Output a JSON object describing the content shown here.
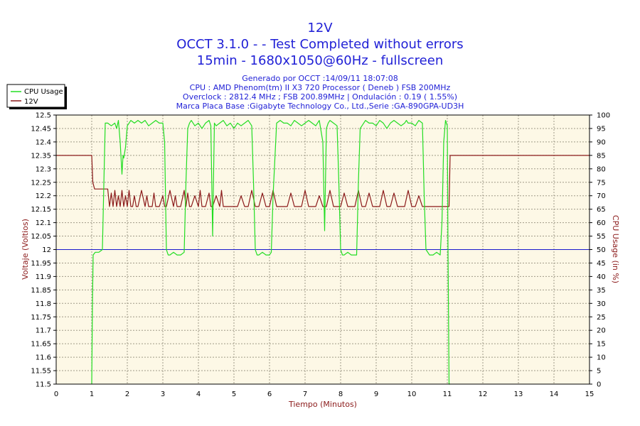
{
  "titles": {
    "line1": "12V",
    "line2": "OCCT 3.1.0 -  - Test Completed without errors",
    "line3": "15min - 1680x1050@60Hz - fullscreen"
  },
  "info": {
    "line1": "Generado por OCCT :14/09/11 18:07:08",
    "line2": "CPU : AMD Phenom(tm) II X3 720 Processor ( Deneb ) FSB 200MHz",
    "line3": "Overclock : 2812.4 MHz ; FSB 200.89MHz | Ondulación : 0.19 ( 1.55%)",
    "line4": "Marca Placa Base :Gigabyte Technology Co., Ltd.,Serie :GA-890GPA-UD3H"
  },
  "legend": {
    "cpu": "CPU Usage",
    "v12": "12V"
  },
  "colors": {
    "cpu": "#22dd22",
    "v12": "#8b1a1a",
    "ref": "#1a1acc",
    "plot_bg": "#fdf8e6",
    "grid": "#a09a88",
    "title": "#1f1fd6",
    "axis_label": "#8b1a1a"
  },
  "chart_data": {
    "type": "line",
    "xlabel": "Tiempo (Minutos)",
    "ylabel_left": "Voltaje (Voltios)",
    "ylabel_right": "CPU Usage (in %)",
    "xlim": [
      0,
      15
    ],
    "ylim_left": [
      11.5,
      12.5
    ],
    "ylim_right": [
      0,
      100
    ],
    "grid": true,
    "legend_position": "top-left",
    "xticks": [
      "0",
      "1",
      "2",
      "3",
      "4",
      "5",
      "6",
      "7",
      "8",
      "9",
      "10",
      "11",
      "12",
      "13",
      "14",
      "15"
    ],
    "yticks_left": [
      "11.5",
      "11.55",
      "11.6",
      "11.65",
      "11.7",
      "11.75",
      "11.8",
      "11.85",
      "11.9",
      "11.95",
      "12",
      "12.05",
      "12.1",
      "12.15",
      "12.2",
      "12.25",
      "12.3",
      "12.35",
      "12.4",
      "12.45",
      "12.5"
    ],
    "yticks_right": [
      "0",
      "5",
      "10",
      "15",
      "20",
      "25",
      "30",
      "35",
      "40",
      "45",
      "50",
      "55",
      "60",
      "65",
      "70",
      "75",
      "80",
      "85",
      "90",
      "95",
      "100"
    ],
    "reference_line": 12.0,
    "series": [
      {
        "name": "12V",
        "axis": "left",
        "x": [
          0,
          1.0,
          1.03,
          1.08,
          1.45,
          1.5,
          1.55,
          1.6,
          1.65,
          1.7,
          1.75,
          1.8,
          1.85,
          1.9,
          1.95,
          2.0,
          2.05,
          2.1,
          2.15,
          2.2,
          2.25,
          2.3,
          2.4,
          2.5,
          2.55,
          2.6,
          2.7,
          2.75,
          2.8,
          2.9,
          3.0,
          3.05,
          3.1,
          3.2,
          3.3,
          3.35,
          3.4,
          3.5,
          3.6,
          3.65,
          3.7,
          3.75,
          3.8,
          3.9,
          4.0,
          4.05,
          4.1,
          4.2,
          4.3,
          4.35,
          4.4,
          4.5,
          4.6,
          4.65,
          4.7,
          4.8,
          4.9,
          5.0,
          5.1,
          5.2,
          5.3,
          5.4,
          5.5,
          5.6,
          5.7,
          5.8,
          5.9,
          6.0,
          6.1,
          6.2,
          6.3,
          6.4,
          6.5,
          6.6,
          6.7,
          6.8,
          6.9,
          7.0,
          7.1,
          7.2,
          7.3,
          7.4,
          7.5,
          7.6,
          7.7,
          7.8,
          7.9,
          8.0,
          8.1,
          8.2,
          8.3,
          8.4,
          8.5,
          8.6,
          8.7,
          8.8,
          8.9,
          9.0,
          9.1,
          9.2,
          9.3,
          9.4,
          9.5,
          9.6,
          9.7,
          9.8,
          9.9,
          10.0,
          10.1,
          10.2,
          10.3,
          10.4,
          10.5,
          10.6,
          10.7,
          10.8,
          10.9,
          11.0,
          11.05,
          11.08,
          11.1,
          15
        ],
        "values": [
          12.35,
          12.35,
          12.25,
          12.225,
          12.225,
          12.16,
          12.21,
          12.16,
          12.22,
          12.16,
          12.2,
          12.16,
          12.22,
          12.16,
          12.2,
          12.16,
          12.22,
          12.16,
          12.16,
          12.2,
          12.16,
          12.16,
          12.22,
          12.16,
          12.2,
          12.16,
          12.16,
          12.21,
          12.16,
          12.16,
          12.2,
          12.16,
          12.16,
          12.22,
          12.16,
          12.2,
          12.16,
          12.16,
          12.22,
          12.16,
          12.21,
          12.16,
          12.16,
          12.2,
          12.16,
          12.22,
          12.16,
          12.16,
          12.21,
          12.16,
          12.16,
          12.2,
          12.16,
          12.22,
          12.16,
          12.16,
          12.16,
          12.16,
          12.16,
          12.2,
          12.16,
          12.16,
          12.22,
          12.16,
          12.16,
          12.21,
          12.16,
          12.16,
          12.22,
          12.16,
          12.16,
          12.16,
          12.16,
          12.21,
          12.16,
          12.16,
          12.16,
          12.22,
          12.16,
          12.16,
          12.16,
          12.2,
          12.16,
          12.16,
          12.22,
          12.16,
          12.16,
          12.16,
          12.21,
          12.16,
          12.16,
          12.16,
          12.22,
          12.16,
          12.16,
          12.21,
          12.16,
          12.16,
          12.16,
          12.22,
          12.16,
          12.16,
          12.21,
          12.16,
          12.16,
          12.16,
          12.22,
          12.16,
          12.16,
          12.2,
          12.16,
          12.16,
          12.16,
          12.16,
          12.16,
          12.16,
          12.16,
          12.16,
          12.16,
          12.35,
          12.35,
          12.35
        ]
      },
      {
        "name": "CPU Usage",
        "axis": "right",
        "x": [
          1.0,
          1.02,
          1.04,
          1.1,
          1.2,
          1.3,
          1.35,
          1.38,
          1.45,
          1.55,
          1.65,
          1.7,
          1.75,
          1.8,
          1.85,
          1.88,
          1.9,
          1.95,
          2.0,
          2.05,
          2.1,
          2.2,
          2.3,
          2.4,
          2.5,
          2.6,
          2.7,
          2.8,
          2.9,
          3.0,
          3.05,
          3.1,
          3.15,
          3.2,
          3.3,
          3.4,
          3.5,
          3.6,
          3.65,
          3.7,
          3.75,
          3.8,
          3.9,
          4.0,
          4.1,
          4.2,
          4.3,
          4.35,
          4.4,
          4.45,
          4.5,
          4.6,
          4.7,
          4.8,
          4.9,
          5.0,
          5.1,
          5.2,
          5.3,
          5.4,
          5.5,
          5.55,
          5.6,
          5.65,
          5.7,
          5.8,
          5.9,
          6.0,
          6.05,
          6.1,
          6.2,
          6.3,
          6.4,
          6.5,
          6.6,
          6.7,
          6.8,
          6.9,
          7.0,
          7.1,
          7.2,
          7.3,
          7.4,
          7.5,
          7.55,
          7.6,
          7.65,
          7.7,
          7.8,
          7.9,
          7.95,
          8.0,
          8.05,
          8.1,
          8.2,
          8.3,
          8.4,
          8.45,
          8.5,
          8.55,
          8.6,
          8.7,
          8.8,
          8.9,
          9.0,
          9.1,
          9.2,
          9.3,
          9.4,
          9.5,
          9.6,
          9.7,
          9.8,
          9.85,
          9.9,
          10.0,
          10.1,
          10.2,
          10.3,
          10.35,
          10.4,
          10.5,
          10.6,
          10.7,
          10.8,
          10.85,
          10.9,
          10.95,
          11.0,
          11.02,
          11.05,
          11.08
        ],
        "values": [
          0,
          30,
          48,
          49,
          49,
          50,
          80,
          97,
          97,
          96,
          97,
          95,
          98,
          90,
          78,
          85,
          84,
          88,
          96,
          97,
          98,
          97,
          98,
          97,
          98,
          96,
          97,
          98,
          97,
          97,
          90,
          50,
          48,
          48,
          49,
          48,
          48,
          49,
          75,
          95,
          97,
          98,
          96,
          97,
          95,
          97,
          98,
          96,
          55,
          97,
          96,
          97,
          98,
          96,
          97,
          95,
          97,
          96,
          97,
          98,
          96,
          75,
          50,
          48,
          48,
          49,
          48,
          48,
          49,
          70,
          97,
          98,
          97,
          97,
          96,
          98,
          97,
          96,
          97,
          98,
          97,
          96,
          98,
          90,
          57,
          95,
          97,
          98,
          97,
          96,
          75,
          50,
          48,
          48,
          49,
          48,
          48,
          48,
          75,
          95,
          96,
          98,
          97,
          97,
          96,
          98,
          97,
          95,
          97,
          98,
          97,
          96,
          97,
          98,
          97,
          97,
          96,
          98,
          97,
          70,
          50,
          48,
          48,
          49,
          48,
          60,
          90,
          98,
          96,
          50,
          0,
          0
        ]
      }
    ]
  }
}
